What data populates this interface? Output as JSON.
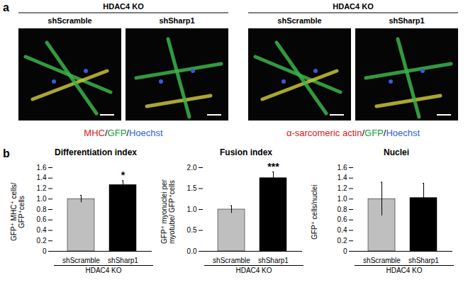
{
  "panel_labels": [
    "a",
    "b"
  ],
  "panel_a": {
    "groups": [
      {
        "header": "HDAC4 KO",
        "conditions": [
          "shScramble",
          "shSharp1"
        ],
        "caption": [
          {
            "text": "MHC",
            "color": "#d7191c"
          },
          {
            "text": "/",
            "color": "#000000"
          },
          {
            "text": "GFP",
            "color": "#1a9641"
          },
          {
            "text": "/",
            "color": "#000000"
          },
          {
            "text": "Hoechst",
            "color": "#2b5fd9"
          }
        ]
      },
      {
        "header": "HDAC4 KO",
        "conditions": [
          "shScramble",
          "shSharp1"
        ],
        "caption": [
          {
            "text": "α-sarcomeric actin",
            "color": "#d7191c"
          },
          {
            "text": "/",
            "color": "#000000"
          },
          {
            "text": "GFP",
            "color": "#1a9641"
          },
          {
            "text": "/",
            "color": "#000000"
          },
          {
            "text": "Hoechst",
            "color": "#2b5fd9"
          }
        ]
      }
    ]
  },
  "chart_data": [
    {
      "type": "bar",
      "title": "Differentiation index",
      "y_label": "GFP⁺ MHC⁺ cells/ GFP⁺cells",
      "x_label": "HDAC4 KO",
      "categories": [
        "shScramble",
        "shSharp1"
      ],
      "values": [
        1.0,
        1.27
      ],
      "errors": [
        0.07,
        0.08
      ],
      "colors": [
        "#bfbfbf",
        "#000000"
      ],
      "ylim": [
        0,
        1.6
      ],
      "yticks": [
        0,
        0.2,
        0.4,
        0.6,
        0.8,
        {
          "value": 1,
          "label": "1.0"
        },
        1.2,
        1.4,
        1.6
      ],
      "annotations": [
        {
          "category": "shSharp1",
          "text": "*"
        }
      ]
    },
    {
      "type": "bar",
      "title": "Fusion index",
      "y_label": "GFP⁺ myonuclei per myotube/ GFP⁺cells",
      "x_label": "HDAC4 KO",
      "categories": [
        "shScramble",
        "shSharp1"
      ],
      "values": [
        1.0,
        1.75
      ],
      "errors": [
        0.09,
        0.15
      ],
      "colors": [
        "#bfbfbf",
        "#000000"
      ],
      "ylim": [
        0,
        2
      ],
      "yticks": [
        {
          "value": 0,
          "label": "0.0"
        },
        0.5,
        {
          "value": 1,
          "label": "1.0"
        },
        1.5,
        {
          "value": 2,
          "label": "2.0"
        }
      ],
      "annotations": [
        {
          "category": "shSharp1",
          "text": "***"
        }
      ]
    },
    {
      "type": "bar",
      "title": "Nuclei",
      "y_label": "GFP⁺ cells/nuclei",
      "x_label": "HDAC4 KO",
      "categories": [
        "shScramble",
        "shSharp1"
      ],
      "values": [
        1.0,
        1.02
      ],
      "errors": [
        0.32,
        0.28
      ],
      "colors": [
        "#bfbfbf",
        "#000000"
      ],
      "ylim": [
        0,
        1.6
      ],
      "yticks": [
        0,
        0.2,
        0.4,
        0.6,
        0.8,
        {
          "value": 1,
          "label": "1.0"
        },
        1.2,
        1.4,
        1.6
      ],
      "annotations": []
    }
  ]
}
